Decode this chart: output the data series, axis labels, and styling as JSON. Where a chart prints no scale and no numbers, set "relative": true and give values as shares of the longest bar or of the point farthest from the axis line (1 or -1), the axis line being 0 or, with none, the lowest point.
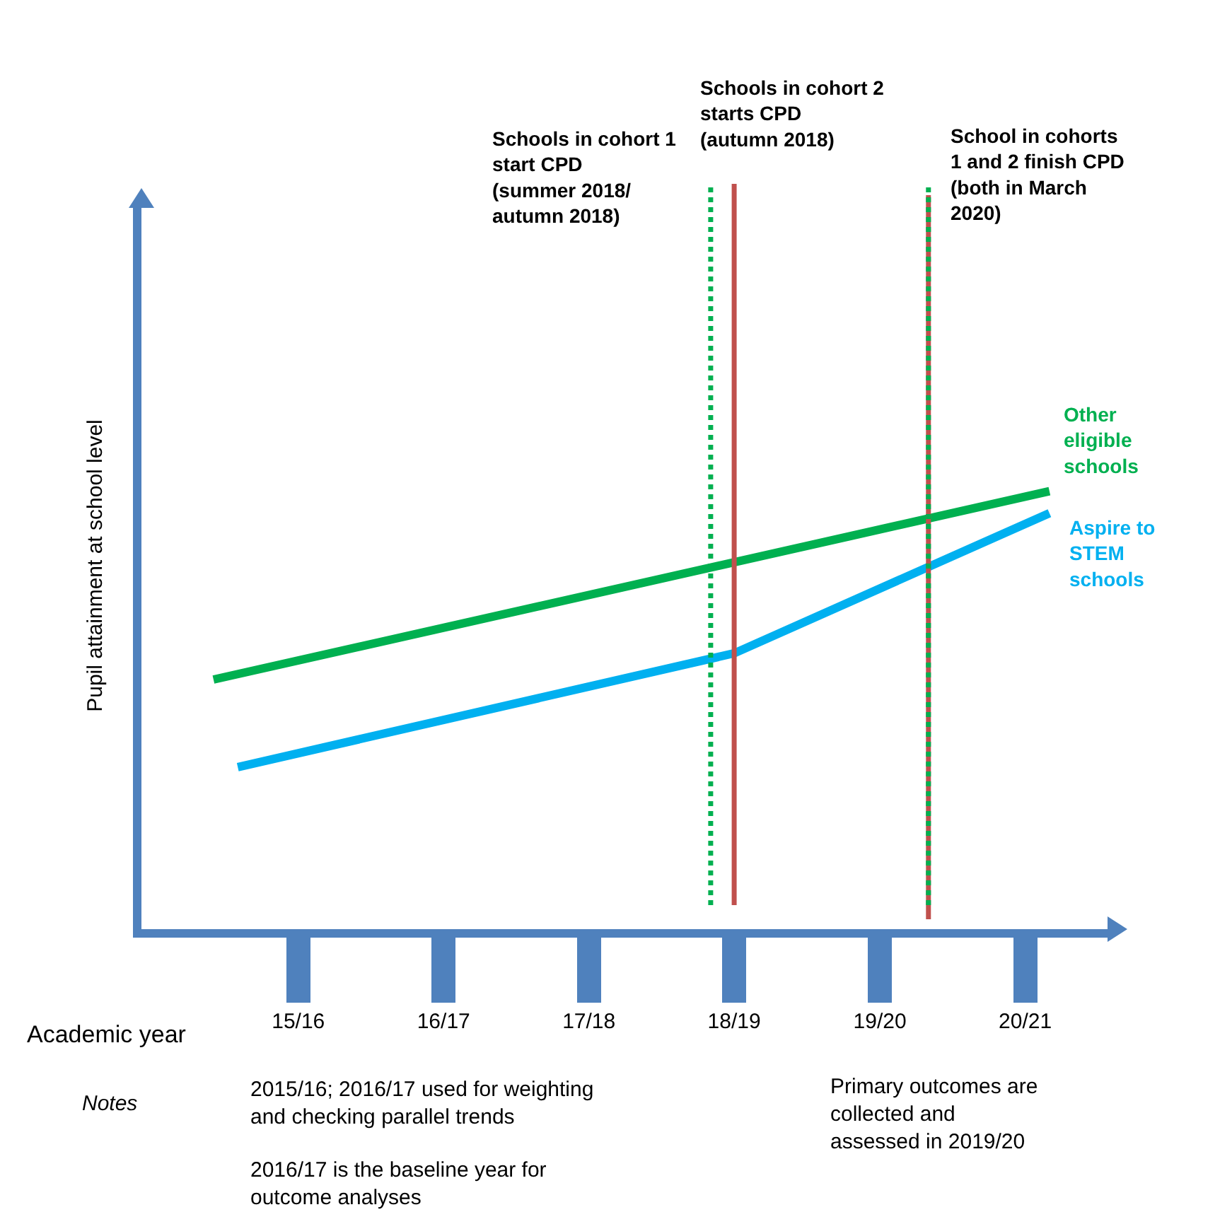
{
  "chart_data": {
    "type": "line",
    "relative": true,
    "xlabel": "Academic year",
    "ylabel": "Pupil attainment at school level",
    "xlim": [
      "2015-02",
      "2021-10"
    ],
    "xticks": [
      {
        "value": "2016-03",
        "label": "15/16"
      },
      {
        "value": "2017-03",
        "label": "16/17"
      },
      {
        "value": "2018-03",
        "label": "17/18"
      },
      {
        "value": "2019-03",
        "label": "18/19"
      },
      {
        "value": "2020-03",
        "label": "19/20"
      },
      {
        "value": "2021-03",
        "label": "20/21"
      }
    ],
    "series": [
      {
        "name": "Other eligible schools",
        "color": "#00b050",
        "x": [
          "2015-08",
          "2021-05"
        ],
        "values": [
          0.57,
          1
        ]
      },
      {
        "name": "Aspire to STEM schools",
        "color": "#00b0f0",
        "x": [
          "2015-10",
          "2019-03",
          "2021-05"
        ],
        "values": [
          0.37,
          0.63,
          0.95
        ]
      }
    ],
    "ref_lines": [
      {
        "axis": "x",
        "value": "2019-01",
        "label": "Schools in cohort 1\nstart CPD\n(summer 2018/\nautumn 2018)",
        "color": "#00b050",
        "line_style": "dotted"
      },
      {
        "axis": "x",
        "value": "2019-03",
        "label": "Schools in cohort 2\nstarts CPD\n(autumn 2018)",
        "color": "#c0504d",
        "line_style": "solid"
      },
      {
        "axis": "x",
        "value": "2020-07",
        "label": "School in cohorts\n1 and 2 finish CPD\n(both in March\n2020)",
        "color": "#c0504d",
        "line_style": "solid"
      },
      {
        "axis": "x",
        "value": "2020-07",
        "color": "#00b050",
        "line_style": "dotted"
      }
    ],
    "annotations": [
      "Notes",
      "2015/16; 2016/17 used for weighting\nand checking parallel trends",
      "2016/17 is the baseline year for\noutcome analyses",
      "Primary outcomes are\ncollected and\nassessed in 2019/20"
    ],
    "grid": false,
    "legend": false,
    "marker": "none",
    "line_style": "solid"
  }
}
